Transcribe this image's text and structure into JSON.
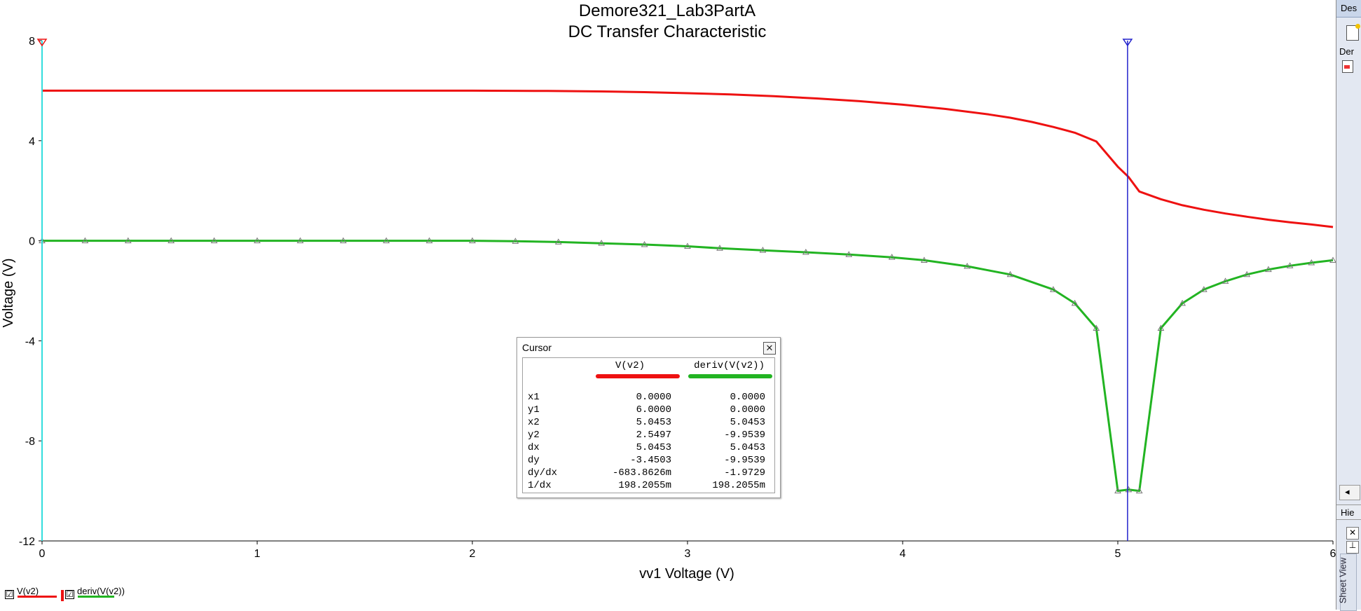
{
  "chart_data": {
    "type": "line",
    "title": "Demore321_Lab3PartA",
    "subtitle": "DC Transfer Characteristic",
    "xlabel": "vv1 Voltage (V)",
    "ylabel": "Voltage (V)",
    "xlim": [
      0,
      6
    ],
    "ylim": [
      -12,
      8
    ],
    "xticks": [
      0,
      1,
      2,
      3,
      4,
      5,
      6
    ],
    "yticks": [
      8,
      4,
      0,
      -4,
      -8,
      -12
    ],
    "grid": false,
    "legend": "bottom-left",
    "series": [
      {
        "name": "V(v2)",
        "color": "#ee1111",
        "x": [
          0,
          0.5,
          1,
          1.5,
          2,
          2.35,
          2.6,
          2.8,
          3.0,
          3.2,
          3.4,
          3.6,
          3.8,
          4.0,
          4.2,
          4.4,
          4.5,
          4.6,
          4.7,
          4.8,
          4.9,
          5.0,
          5.05,
          5.1,
          5.2,
          5.3,
          5.4,
          5.5,
          5.6,
          5.7,
          5.8,
          5.9,
          6.0
        ],
        "y": [
          6.0,
          6.0,
          6.0,
          6.0,
          6.0,
          5.99,
          5.97,
          5.94,
          5.9,
          5.85,
          5.78,
          5.69,
          5.58,
          5.44,
          5.27,
          5.05,
          4.92,
          4.75,
          4.55,
          4.32,
          3.97,
          2.96,
          2.55,
          1.97,
          1.66,
          1.42,
          1.24,
          1.09,
          0.96,
          0.84,
          0.74,
          0.65,
          0.55
        ]
      },
      {
        "name": "deriv(V(v2))",
        "color": "#22b422",
        "x": [
          0,
          0.2,
          0.4,
          0.6,
          0.8,
          1.0,
          1.2,
          1.4,
          1.6,
          1.8,
          2.0,
          2.2,
          2.4,
          2.6,
          2.8,
          3.0,
          3.15,
          3.35,
          3.55,
          3.75,
          3.95,
          4.1,
          4.3,
          4.5,
          4.7,
          4.8,
          4.9,
          5.0,
          5.05,
          5.1,
          5.2,
          5.3,
          5.4,
          5.5,
          5.6,
          5.7,
          5.8,
          5.9,
          6.0
        ],
        "y": [
          0,
          0,
          0,
          0,
          0,
          0,
          0,
          0,
          0,
          0,
          0,
          -0.02,
          -0.05,
          -0.1,
          -0.15,
          -0.22,
          -0.3,
          -0.38,
          -0.46,
          -0.55,
          -0.66,
          -0.78,
          -1.02,
          -1.35,
          -1.95,
          -2.5,
          -3.5,
          -10.0,
          -9.95,
          -10.0,
          -3.5,
          -2.5,
          -1.95,
          -1.62,
          -1.35,
          -1.15,
          -1.0,
          -0.88,
          -0.78
        ],
        "markers": "triangle"
      }
    ],
    "cursors": [
      {
        "name": "cursor1",
        "x": 0.0,
        "color": "#33dddd"
      },
      {
        "name": "cursor2",
        "x": 5.0453,
        "color": "#2222cc"
      }
    ]
  },
  "cursor_window": {
    "title": "Cursor",
    "close_icon": "close-icon",
    "columns": [
      "V(v2)",
      "deriv(V(v2))"
    ],
    "column_colors": [
      "#ee1111",
      "#22b422"
    ],
    "rows": [
      {
        "label": "x1",
        "v1": "0.0000",
        "v2": "0.0000"
      },
      {
        "label": "y1",
        "v1": "6.0000",
        "v2": "0.0000"
      },
      {
        "label": "x2",
        "v1": "5.0453",
        "v2": "5.0453"
      },
      {
        "label": "y2",
        "v1": "2.5497",
        "v2": "-9.9539"
      },
      {
        "label": "dx",
        "v1": "5.0453",
        "v2": "5.0453"
      },
      {
        "label": "dy",
        "v1": "-3.4503",
        "v2": "-9.9539"
      },
      {
        "label": "dy/dx",
        "v1": "-683.8626m",
        "v2": "-1.9729"
      },
      {
        "label": "1/dx",
        "v1": "198.2055m",
        "v2": "198.2055m"
      }
    ]
  },
  "legend": {
    "items": [
      {
        "label": "V(v2)",
        "checked": "☑"
      },
      {
        "label": "deriv(V(v2))",
        "checked": "☑"
      }
    ]
  },
  "side_panel": {
    "tab_top": "Des",
    "tab_mid": "Der",
    "tab_hier": "Hie",
    "sheet_view": "Sheet View"
  }
}
